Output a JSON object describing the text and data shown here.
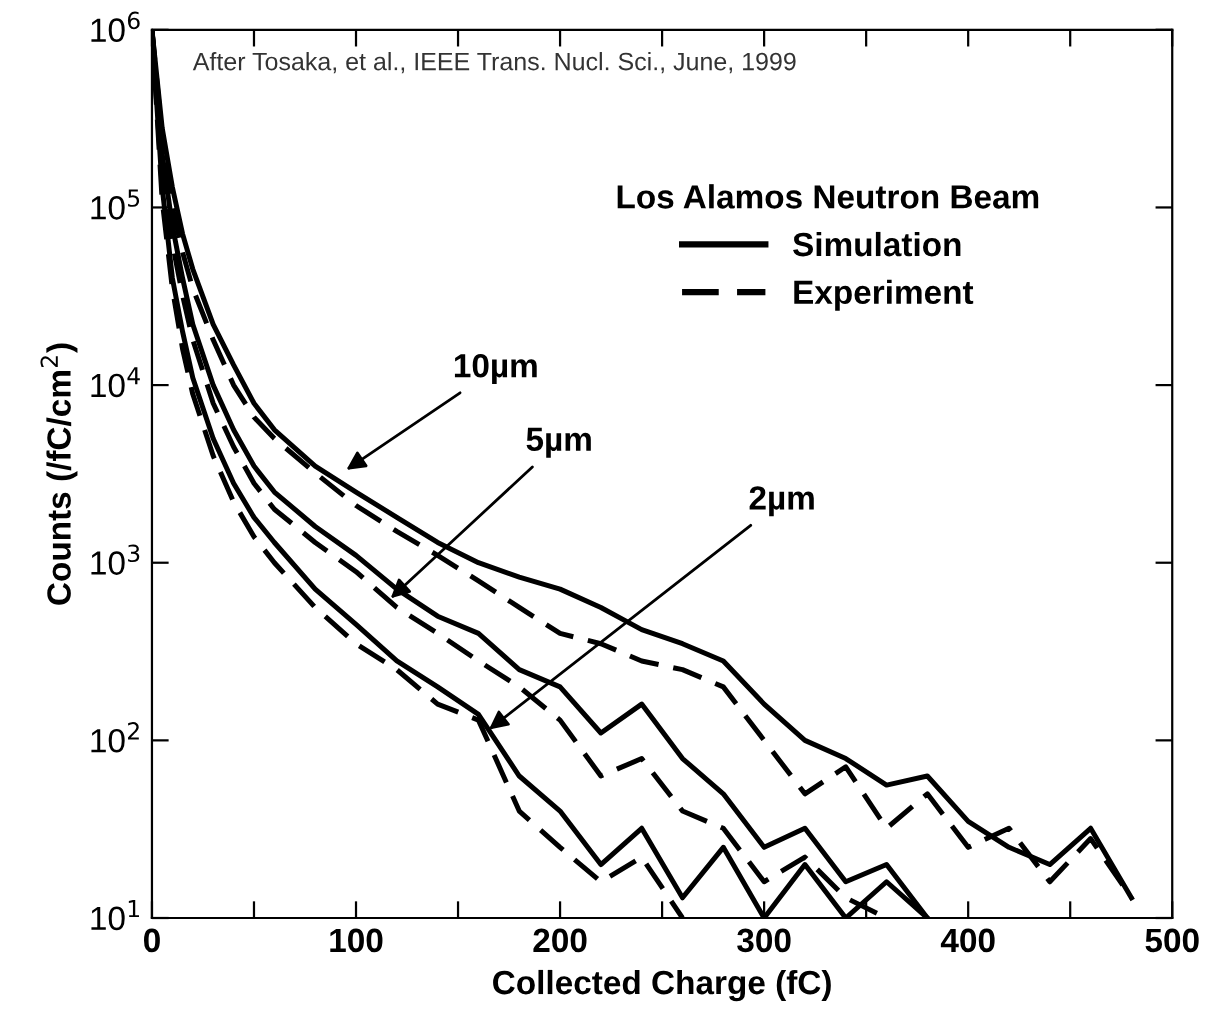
{
  "chart_data": {
    "type": "line",
    "xlabel": "Collected Charge (fC)",
    "ylabel": "Counts (/fC/cm$^{2}$)",
    "legend_title": "Los Alamos Neutron Beam",
    "legend": "top right",
    "log": "y",
    "grid": false,
    "x": [
      0,
      5,
      10,
      15,
      20,
      30,
      40,
      50,
      60,
      80,
      100,
      120,
      140,
      160,
      180,
      200,
      220,
      240,
      260,
      280,
      300,
      320,
      340,
      360,
      380,
      400,
      420,
      440,
      460,
      480
    ],
    "series": [
      {
        "name": "Simulation",
        "color": "#000000",
        "line_style": "solid",
        "values": [
          1000000,
          280000,
          130000,
          71000,
          45000,
          22000,
          13000,
          7900,
          5600,
          3500,
          2500,
          1800,
          1300,
          1000,
          830,
          710,
          560,
          420,
          350,
          280,
          160,
          100,
          79,
          56,
          63,
          35,
          25,
          20,
          32,
          13
        ]
      },
      {
        "name": "Experiment",
        "color": "#000000",
        "line_style": "dashed",
        "values": [
          1000000,
          250000,
          100000,
          56000,
          35000,
          18000,
          10000,
          6600,
          5000,
          3200,
          2100,
          1500,
          1100,
          790,
          560,
          400,
          350,
          280,
          250,
          200,
          100,
          50,
          71,
          32,
          50,
          25,
          32,
          16,
          28,
          13
        ]
      },
      {
        "color": "#000000",
        "line_style": "solid",
        "values": [
          1000000,
          200000,
          79000,
          40000,
          22000,
          10000,
          5600,
          3500,
          2500,
          1600,
          1100,
          710,
          500,
          400,
          250,
          200,
          110,
          160,
          79,
          50,
          25,
          32,
          16,
          20,
          10,
          null,
          null,
          null,
          null,
          null
        ]
      },
      {
        "color": "#000000",
        "line_style": "dashed",
        "values": [
          1000000,
          180000,
          63000,
          32000,
          18000,
          7900,
          4500,
          2800,
          2000,
          1300,
          890,
          560,
          400,
          280,
          200,
          130,
          63,
          79,
          40,
          32,
          16,
          22,
          13,
          10,
          null,
          null,
          null,
          null,
          null,
          null
        ]
      },
      {
        "color": "#000000",
        "line_style": "solid",
        "values": [
          1000000,
          130000,
          40000,
          20000,
          11000,
          5000,
          2800,
          1800,
          1300,
          710,
          450,
          280,
          200,
          140,
          63,
          40,
          20,
          32,
          13,
          25,
          10,
          20,
          10,
          16,
          10,
          null,
          null,
          null,
          null,
          null
        ]
      },
      {
        "color": "#000000",
        "line_style": "dashed",
        "values": [
          1000000,
          110000,
          35000,
          16000,
          8900,
          4000,
          2200,
          1400,
          1000,
          560,
          350,
          250,
          160,
          130,
          40,
          25,
          16,
          22,
          10,
          null,
          null,
          null,
          null,
          null,
          null,
          null,
          null,
          null,
          null,
          null
        ]
      }
    ],
    "xlim": [
      0,
      500
    ],
    "xticks": [
      0,
      {
        "value": 50,
        "label": null
      },
      100,
      {
        "value": 150,
        "label": null
      },
      200,
      {
        "value": 250,
        "label": null
      },
      300,
      {
        "value": 350,
        "label": null
      },
      400,
      {
        "value": 450,
        "label": null
      },
      500
    ],
    "ylim": [
      10,
      1000000
    ],
    "yticks": [
      {
        "value": 10,
        "label": "10$^{1}$"
      },
      {
        "value": 100,
        "label": "10$^{2}$"
      },
      {
        "value": 1000,
        "label": "10$^{3}$"
      },
      {
        "value": 10000,
        "label": "10$^{4}$"
      },
      {
        "value": 100000,
        "label": "10$^{5}$"
      },
      {
        "value": 1000000,
        "label": "10$^{6}$"
      }
    ],
    "annotations": [
      "After Tosaka, et al., IEEE Trans. Nucl. Sci., June, 1999",
      {
        "text": "10µm",
        "x": 93,
        "y": 3200
      },
      {
        "text": "5µm",
        "x": 115,
        "y": 600
      },
      {
        "text": "2µm",
        "x": 163,
        "y": 110
      }
    ]
  }
}
